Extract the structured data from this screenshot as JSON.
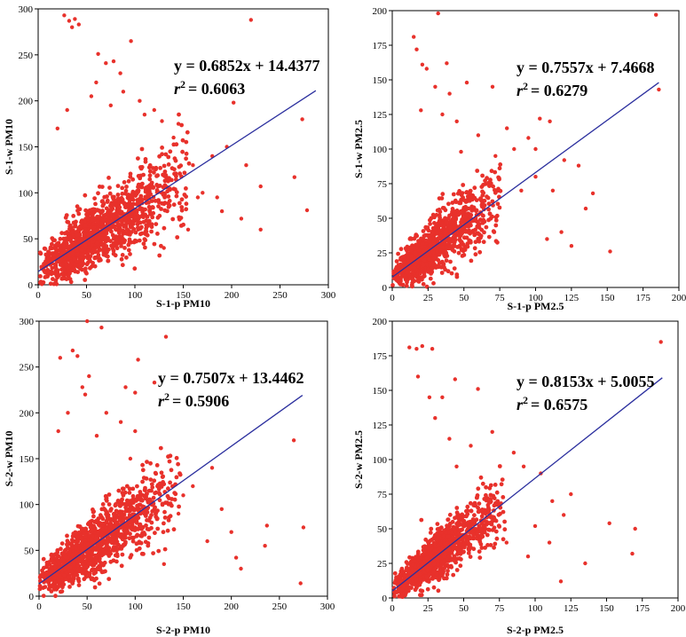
{
  "chart_data": [
    {
      "type": "scatter",
      "id": "s1-pm10",
      "xlabel": "S-1-p PM10",
      "ylabel": "S-1-w PM10",
      "xlim": [
        0,
        300
      ],
      "ylim": [
        0,
        300
      ],
      "xticks": [
        0,
        50,
        100,
        150,
        200,
        250,
        300
      ],
      "yticks": [
        0,
        50,
        100,
        150,
        200,
        250,
        300
      ],
      "xtick_labels": [
        "0",
        "50",
        "100",
        "150",
        "200",
        "250",
        "300"
      ],
      "ytick_labels": [
        "0",
        "50",
        "100",
        "150",
        "200",
        "250",
        "300"
      ],
      "fit": {
        "slope": 0.6852,
        "intercept": 14.4377,
        "r2": 0.6063,
        "x_end": 287
      },
      "equation_label": "y = 0.6852x + 14.4377",
      "r2_prefix": "r",
      "r2_sup": "2",
      "r2_value": "= 0.6063",
      "cloud": {
        "xmax": 150,
        "n": 1300,
        "spread": 17,
        "seed": 11
      },
      "colors": {
        "points": "#e8312b",
        "fit": "#2b2f9e"
      },
      "outliers": [
        [
          27,
          293
        ],
        [
          32,
          287
        ],
        [
          35,
          280
        ],
        [
          38,
          289
        ],
        [
          42,
          283
        ],
        [
          70,
          241
        ],
        [
          78,
          243
        ],
        [
          62,
          251
        ],
        [
          96,
          265
        ],
        [
          85,
          230
        ],
        [
          220,
          288
        ],
        [
          278,
          81
        ],
        [
          273,
          180
        ],
        [
          265,
          117
        ],
        [
          230,
          107
        ],
        [
          230,
          60
        ],
        [
          210,
          72
        ],
        [
          202,
          198
        ],
        [
          180,
          140
        ],
        [
          195,
          150
        ],
        [
          160,
          130
        ],
        [
          170,
          100
        ],
        [
          190,
          80
        ],
        [
          145,
          175
        ],
        [
          120,
          190
        ],
        [
          105,
          200
        ],
        [
          88,
          210
        ],
        [
          60,
          220
        ],
        [
          55,
          205
        ],
        [
          75,
          195
        ],
        [
          140,
          160
        ],
        [
          185,
          95
        ],
        [
          215,
          130
        ],
        [
          155,
          60
        ],
        [
          130,
          40
        ],
        [
          20,
          170
        ],
        [
          30,
          190
        ],
        [
          110,
          185
        ],
        [
          128,
          178
        ],
        [
          165,
          95
        ]
      ]
    },
    {
      "type": "scatter",
      "id": "s1-pm25",
      "xlabel": "S-1-p PM2.5",
      "ylabel": "S-1-w PM2.5",
      "xlim": [
        0,
        200
      ],
      "ylim": [
        0,
        200
      ],
      "xticks": [
        0,
        25,
        50,
        75,
        100,
        125,
        150,
        175,
        200
      ],
      "yticks": [
        0,
        25,
        50,
        75,
        100,
        125,
        150,
        175,
        200
      ],
      "xtick_labels": [
        "0",
        "25",
        "50",
        "75",
        "100",
        "125",
        "150",
        "175",
        "200"
      ],
      "ytick_labels": [
        "0",
        "25",
        "50",
        "75",
        "100",
        "125",
        "150",
        "175",
        "200"
      ],
      "fit": {
        "slope": 0.7557,
        "intercept": 7.4668,
        "r2": 0.6279,
        "x_end": 186
      },
      "equation_label": "y = 0.7557x + 7.4668",
      "r2_prefix": "r",
      "r2_sup": "2",
      "r2_value": "= 0.6279",
      "cloud": {
        "xmax": 72,
        "n": 1100,
        "spread": 9,
        "seed": 23
      },
      "colors": {
        "points": "#e8312b",
        "fit": "#2b2f9e"
      },
      "outliers": [
        [
          32,
          198
        ],
        [
          15,
          181
        ],
        [
          17,
          172
        ],
        [
          21,
          161
        ],
        [
          24,
          158
        ],
        [
          38,
          162
        ],
        [
          30,
          145
        ],
        [
          40,
          140
        ],
        [
          52,
          148
        ],
        [
          70,
          145
        ],
        [
          184,
          197
        ],
        [
          186,
          143
        ],
        [
          152,
          26
        ],
        [
          140,
          68
        ],
        [
          135,
          57
        ],
        [
          125,
          30
        ],
        [
          118,
          40
        ],
        [
          110,
          120
        ],
        [
          103,
          122
        ],
        [
          95,
          108
        ],
        [
          85,
          100
        ],
        [
          80,
          115
        ],
        [
          100,
          80
        ],
        [
          112,
          70
        ],
        [
          120,
          92
        ],
        [
          90,
          70
        ],
        [
          72,
          95
        ],
        [
          60,
          110
        ],
        [
          45,
          120
        ],
        [
          48,
          98
        ],
        [
          20,
          128
        ],
        [
          35,
          125
        ],
        [
          108,
          35
        ],
        [
          130,
          88
        ],
        [
          100,
          100
        ]
      ]
    },
    {
      "type": "scatter",
      "id": "s2-pm10",
      "xlabel": "S-2-p PM10",
      "ylabel": "S-2-w PM10",
      "xlim": [
        0,
        300
      ],
      "ylim": [
        0,
        300
      ],
      "xticks": [
        0,
        50,
        100,
        150,
        200,
        250,
        300
      ],
      "yticks": [
        0,
        50,
        100,
        150,
        200,
        250,
        300
      ],
      "xtick_labels": [
        "0",
        "50",
        "100",
        "150",
        "200",
        "250",
        "300"
      ],
      "ytick_labels": [
        "0",
        "50",
        "100",
        "150",
        "200",
        "250",
        "300"
      ],
      "fit": {
        "slope": 0.7507,
        "intercept": 13.4462,
        "r2": 0.5906,
        "x_end": 274
      },
      "equation_label": "y = 0.7507x + 13.4462",
      "r2_prefix": "r",
      "r2_sup": "2",
      "r2_value": "= 0.5906",
      "cloud": {
        "xmax": 140,
        "n": 1300,
        "spread": 15,
        "seed": 37
      },
      "colors": {
        "points": "#e8312b",
        "fit": "#2b2f9e"
      },
      "outliers": [
        [
          50,
          300
        ],
        [
          65,
          293
        ],
        [
          35,
          268
        ],
        [
          40,
          262
        ],
        [
          22,
          260
        ],
        [
          132,
          283
        ],
        [
          103,
          258
        ],
        [
          120,
          233
        ],
        [
          52,
          240
        ],
        [
          45,
          228
        ],
        [
          48,
          220
        ],
        [
          90,
          228
        ],
        [
          100,
          222
        ],
        [
          275,
          75
        ],
        [
          272,
          14
        ],
        [
          265,
          170
        ],
        [
          237,
          77
        ],
        [
          205,
          42
        ],
        [
          200,
          70
        ],
        [
          175,
          60
        ],
        [
          180,
          140
        ],
        [
          160,
          120
        ],
        [
          145,
          90
        ],
        [
          150,
          110
        ],
        [
          100,
          180
        ],
        [
          85,
          190
        ],
        [
          70,
          200
        ],
        [
          95,
          150
        ],
        [
          60,
          175
        ],
        [
          30,
          200
        ],
        [
          20,
          180
        ],
        [
          130,
          35
        ],
        [
          190,
          95
        ],
        [
          210,
          30
        ],
        [
          235,
          55
        ]
      ]
    },
    {
      "type": "scatter",
      "id": "s2-pm25",
      "xlabel": "S-2-p PM2.5",
      "ylabel": "S-2-w PM2.5",
      "xlim": [
        0,
        200
      ],
      "ylim": [
        0,
        200
      ],
      "xticks": [
        0,
        25,
        50,
        75,
        100,
        125,
        150,
        175,
        200
      ],
      "yticks": [
        0,
        25,
        50,
        75,
        100,
        125,
        150,
        175,
        200
      ],
      "xtick_labels": [
        "0",
        "25",
        "50",
        "75",
        "100",
        "125",
        "150",
        "175",
        "200"
      ],
      "ytick_labels": [
        "0",
        "25",
        "50",
        "75",
        "100",
        "125",
        "150",
        "175",
        "200"
      ],
      "fit": {
        "slope": 0.8153,
        "intercept": 5.0055,
        "r2": 0.6575,
        "x_end": 189
      },
      "equation_label": "y = 0.8153x + 5.0055",
      "r2_prefix": "r",
      "r2_sup": "2",
      "r2_value": "= 0.6575",
      "cloud": {
        "xmax": 75,
        "n": 1100,
        "spread": 8,
        "seed": 51
      },
      "colors": {
        "points": "#e8312b",
        "fit": "#2b2f9e"
      },
      "outliers": [
        [
          12,
          181
        ],
        [
          17,
          180
        ],
        [
          21,
          182
        ],
        [
          28,
          180
        ],
        [
          18,
          160
        ],
        [
          26,
          145
        ],
        [
          35,
          145
        ],
        [
          44,
          158
        ],
        [
          60,
          151
        ],
        [
          188,
          185
        ],
        [
          170,
          50
        ],
        [
          168,
          32
        ],
        [
          152,
          54
        ],
        [
          135,
          25
        ],
        [
          118,
          12
        ],
        [
          112,
          70
        ],
        [
          104,
          90
        ],
        [
          100,
          52
        ],
        [
          92,
          95
        ],
        [
          85,
          105
        ],
        [
          70,
          120
        ],
        [
          55,
          110
        ],
        [
          40,
          115
        ],
        [
          45,
          95
        ],
        [
          30,
          130
        ],
        [
          120,
          60
        ],
        [
          110,
          40
        ],
        [
          95,
          30
        ],
        [
          125,
          75
        ],
        [
          80,
          40
        ]
      ]
    }
  ]
}
